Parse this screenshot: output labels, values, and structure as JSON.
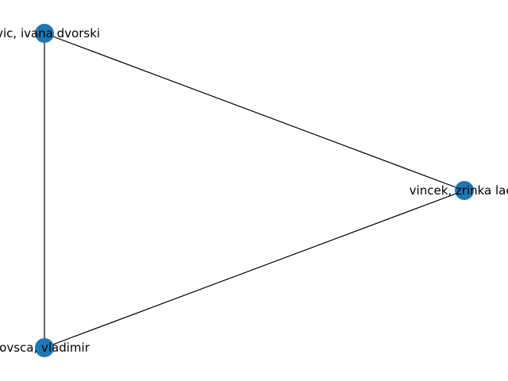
{
  "graph": {
    "node_color": "#1f77b4",
    "edge_color": "#000000",
    "nodes": [
      {
        "id": "n1",
        "label": "ovic, ivana dvorski"
      },
      {
        "id": "n2",
        "label": "vincek, zrinka lack"
      },
      {
        "id": "n3",
        "label": "ovsca, vladimir"
      }
    ],
    "edges": [
      {
        "source": "n1",
        "target": "n2"
      },
      {
        "source": "n1",
        "target": "n3"
      },
      {
        "source": "n2",
        "target": "n3"
      }
    ]
  }
}
